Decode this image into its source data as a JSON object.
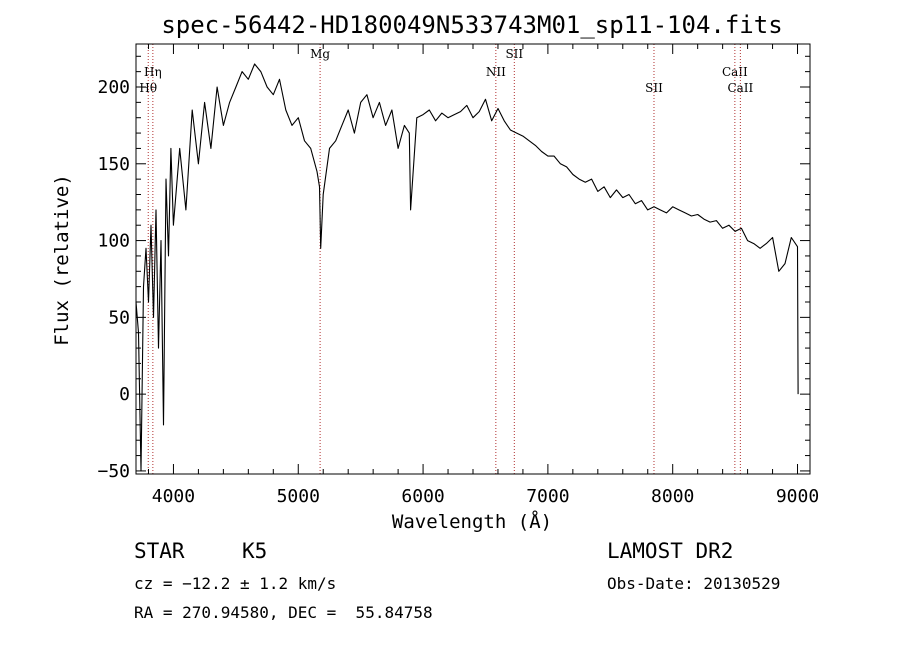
{
  "chart_data": {
    "type": "line",
    "title": "spec-56442-HD180049N533743M01_sp11-104.fits",
    "xlabel": "Wavelength (Å)",
    "ylabel": "Flux (relative)",
    "xlim": [
      3700,
      9100
    ],
    "ylim": [
      -52,
      228
    ],
    "xticks": [
      4000,
      5000,
      6000,
      7000,
      8000,
      9000
    ],
    "yticks": [
      -50,
      0,
      50,
      100,
      150,
      200
    ],
    "grid": false,
    "line_color": "#000000",
    "marker_color": "#b03030",
    "spectral_lines": [
      {
        "label": "Hθ",
        "wavelength": 3798,
        "level": 2
      },
      {
        "label": "Hη",
        "wavelength": 3835,
        "level": 1
      },
      {
        "label": "Mg",
        "wavelength": 5175,
        "level": 0
      },
      {
        "label": "NII",
        "wavelength": 6583,
        "level": 1
      },
      {
        "label": "SII",
        "wavelength": 6731,
        "level": 0
      },
      {
        "label": "SII",
        "wavelength": 7850,
        "level": 2
      },
      {
        "label": "CaII",
        "wavelength": 8498,
        "level": 1
      },
      {
        "label": "CaII",
        "wavelength": 8542,
        "level": 2
      }
    ],
    "x": [
      3700,
      3720,
      3740,
      3760,
      3780,
      3800,
      3820,
      3840,
      3860,
      3880,
      3900,
      3920,
      3940,
      3960,
      3980,
      4000,
      4050,
      4100,
      4150,
      4200,
      4250,
      4300,
      4350,
      4400,
      4450,
      4500,
      4550,
      4600,
      4650,
      4700,
      4750,
      4800,
      4850,
      4900,
      4950,
      5000,
      5050,
      5100,
      5150,
      5170,
      5180,
      5200,
      5250,
      5300,
      5350,
      5400,
      5450,
      5500,
      5550,
      5600,
      5650,
      5700,
      5750,
      5800,
      5850,
      5890,
      5900,
      5950,
      6000,
      6050,
      6100,
      6150,
      6200,
      6250,
      6300,
      6350,
      6400,
      6450,
      6500,
      6550,
      6600,
      6650,
      6700,
      6750,
      6800,
      6850,
      6900,
      6950,
      7000,
      7050,
      7100,
      7150,
      7200,
      7250,
      7300,
      7350,
      7400,
      7450,
      7500,
      7550,
      7600,
      7650,
      7700,
      7750,
      7800,
      7850,
      7900,
      7950,
      8000,
      8050,
      8100,
      8150,
      8200,
      8250,
      8300,
      8350,
      8400,
      8450,
      8500,
      8550,
      8600,
      8650,
      8700,
      8750,
      8800,
      8850,
      8900,
      8950,
      9000,
      9005
    ],
    "y": [
      60,
      40,
      -50,
      70,
      95,
      60,
      110,
      50,
      120,
      30,
      100,
      -20,
      140,
      90,
      160,
      110,
      160,
      120,
      185,
      150,
      190,
      160,
      200,
      175,
      190,
      200,
      210,
      205,
      215,
      210,
      200,
      195,
      205,
      185,
      175,
      180,
      165,
      160,
      145,
      135,
      95,
      130,
      160,
      165,
      175,
      185,
      170,
      190,
      195,
      180,
      190,
      175,
      185,
      160,
      175,
      170,
      120,
      180,
      182,
      185,
      178,
      183,
      180,
      182,
      184,
      188,
      180,
      184,
      192,
      178,
      186,
      178,
      172,
      170,
      168,
      165,
      162,
      158,
      155,
      155,
      150,
      148,
      143,
      140,
      138,
      140,
      132,
      135,
      128,
      133,
      128,
      130,
      124,
      126,
      120,
      122,
      120,
      118,
      122,
      120,
      118,
      116,
      117,
      114,
      112,
      113,
      108,
      110,
      106,
      108,
      100,
      98,
      95,
      98,
      102,
      80,
      85,
      102,
      96,
      0
    ]
  },
  "info": {
    "object_class": "STAR",
    "subclass": "K5",
    "redshift": "cz = −12.2 ± 1.2 km/s",
    "coords": "RA = 270.94580, DEC =  55.84758",
    "survey": "LAMOST DR2",
    "obs_date": "Obs-Date: 20130529"
  }
}
